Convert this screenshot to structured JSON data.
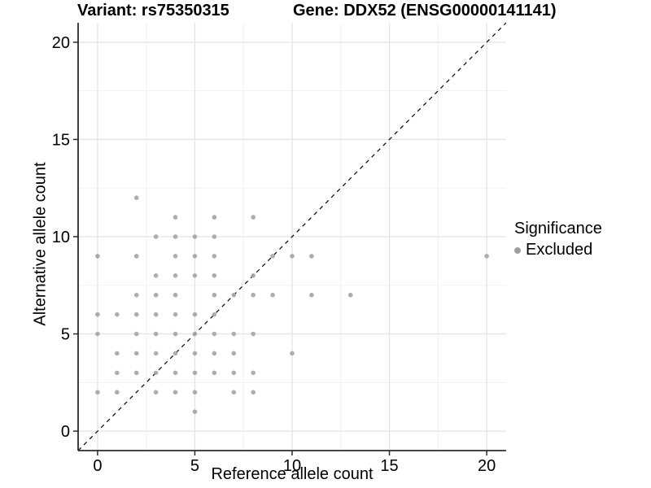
{
  "header": {
    "variant_title": "Variant: rs75350315",
    "gene_title": "Gene: DDX52 (ENSG00000141141)"
  },
  "chart_data": {
    "type": "scatter",
    "title_left": "Variant: rs75350315",
    "title_right": "Gene: DDX52 (ENSG00000141141)",
    "xlabel": "Reference allele count",
    "ylabel": "Alternative allele count",
    "xlim": [
      -1,
      21
    ],
    "ylim": [
      -1,
      21
    ],
    "xticks": [
      0,
      5,
      10,
      15,
      20
    ],
    "yticks": [
      0,
      5,
      10,
      15,
      20
    ],
    "minor_xticks": [
      2.5,
      7.5,
      12.5,
      17.5
    ],
    "minor_yticks": [
      2.5,
      7.5,
      12.5,
      17.5
    ],
    "grid": true,
    "identity_line": {
      "style": "dashed",
      "from": [
        -1,
        -1
      ],
      "to": [
        21,
        21
      ],
      "color": "#000000"
    },
    "series": [
      {
        "name": "Excluded",
        "color": "#a4a4a4",
        "points": [
          [
            5,
            1
          ],
          [
            0,
            2
          ],
          [
            1,
            2
          ],
          [
            3,
            2
          ],
          [
            4,
            2
          ],
          [
            5,
            2
          ],
          [
            7,
            2
          ],
          [
            8,
            2
          ],
          [
            1,
            3
          ],
          [
            2,
            3
          ],
          [
            3,
            3
          ],
          [
            4,
            3
          ],
          [
            5,
            3
          ],
          [
            6,
            3
          ],
          [
            7,
            3
          ],
          [
            8,
            3
          ],
          [
            1,
            4
          ],
          [
            2,
            4
          ],
          [
            3,
            4
          ],
          [
            4,
            4
          ],
          [
            5,
            4
          ],
          [
            6,
            4
          ],
          [
            7,
            4
          ],
          [
            10,
            4
          ],
          [
            0,
            5
          ],
          [
            2,
            5
          ],
          [
            3,
            5
          ],
          [
            4,
            5
          ],
          [
            5,
            5
          ],
          [
            6,
            5
          ],
          [
            7,
            5
          ],
          [
            8,
            5
          ],
          [
            0,
            6
          ],
          [
            1,
            6
          ],
          [
            2,
            6
          ],
          [
            3,
            6
          ],
          [
            4,
            6
          ],
          [
            5,
            6
          ],
          [
            6,
            6
          ],
          [
            2,
            7
          ],
          [
            3,
            7
          ],
          [
            4,
            7
          ],
          [
            6,
            7
          ],
          [
            7,
            7
          ],
          [
            8,
            7
          ],
          [
            9,
            7
          ],
          [
            11,
            7
          ],
          [
            13,
            7
          ],
          [
            3,
            8
          ],
          [
            4,
            8
          ],
          [
            5,
            8
          ],
          [
            6,
            8
          ],
          [
            8,
            8
          ],
          [
            0,
            9
          ],
          [
            2,
            9
          ],
          [
            4,
            9
          ],
          [
            5,
            9
          ],
          [
            6,
            9
          ],
          [
            9,
            9
          ],
          [
            10,
            9
          ],
          [
            11,
            9
          ],
          [
            20,
            9
          ],
          [
            3,
            10
          ],
          [
            4,
            10
          ],
          [
            5,
            10
          ],
          [
            6,
            10
          ],
          [
            4,
            11
          ],
          [
            6,
            11
          ],
          [
            8,
            11
          ],
          [
            2,
            12
          ]
        ]
      }
    ],
    "legend": {
      "title": "Significance",
      "position": "right",
      "entries": [
        {
          "label": "Excluded",
          "color": "#9f9f9f"
        }
      ]
    }
  },
  "colors": {
    "point": "#a4a4a4",
    "grid_major": "#e4e4e4",
    "grid_minor": "#f1f1f1",
    "axis": "#2b2b2b",
    "text": "#000000",
    "background": "#ffffff"
  }
}
